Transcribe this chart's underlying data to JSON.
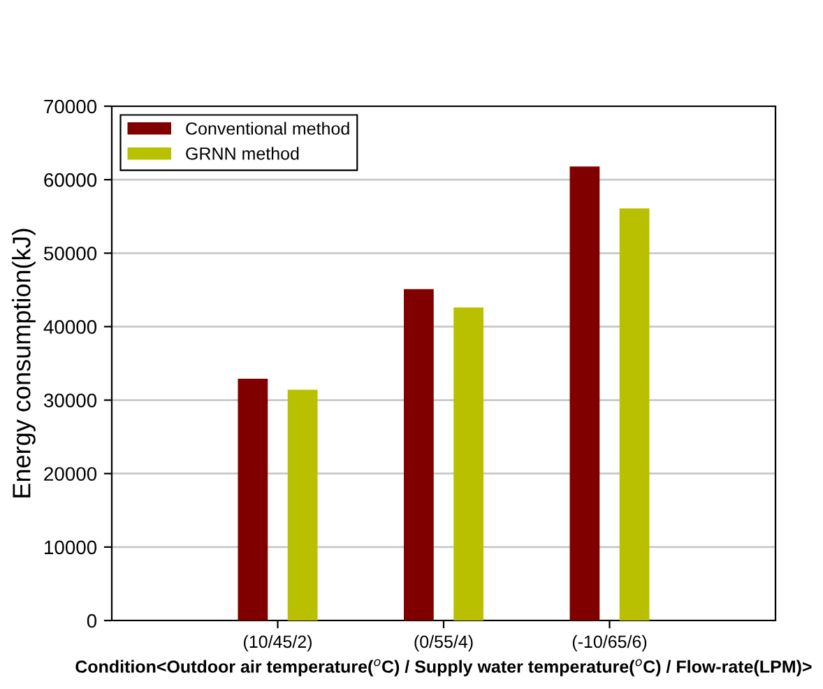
{
  "chart_data": {
    "type": "bar",
    "categories": [
      "(10/45/2)",
      "(0/55/4)",
      "(-10/65/6)"
    ],
    "series": [
      {
        "name": "Conventional method",
        "color": "#800000",
        "values": [
          32900,
          45100,
          61800
        ]
      },
      {
        "name": "GRNN method",
        "color": "#b8c000",
        "values": [
          31400,
          42600,
          56100
        ]
      }
    ],
    "xlabel": "Condition<Outdoor air temperature($^{o}$C) / Supply water temperature($^{o}$C) / Flow-rate(LPM)>",
    "ylabel": "Energy consumption(kJ)",
    "ylim": [
      0,
      70000
    ],
    "yticks": [
      0,
      10000,
      20000,
      30000,
      40000,
      50000,
      60000,
      70000
    ],
    "grid": "y",
    "legend": "top left"
  }
}
